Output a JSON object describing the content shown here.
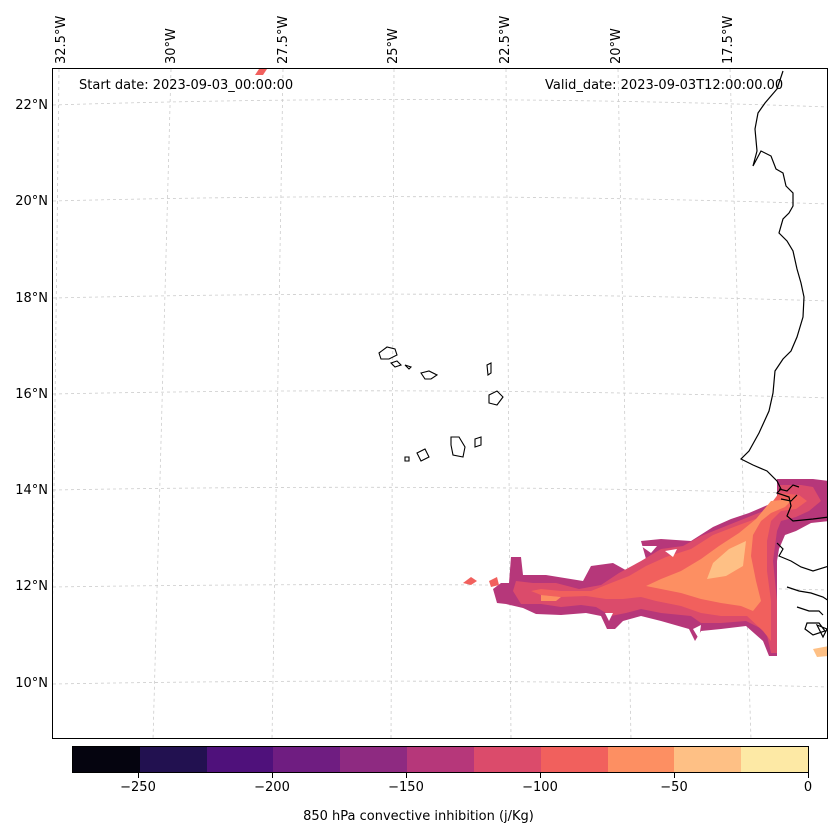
{
  "map": {
    "start_date": "Start date: 2023-09-03_00:00:00",
    "valid_date": "Valid_date: 2023-09-03T12:00:00.00",
    "lon_labels": [
      "32.5°W",
      "30°W",
      "27.5°W",
      "25°W",
      "22.5°W",
      "20°W",
      "17.5°W"
    ],
    "lat_labels": [
      "22°N",
      "20°N",
      "18°N",
      "16°N",
      "14°N",
      "12°N",
      "10°N"
    ],
    "variable": "850 hPa convective inhibition",
    "units": "j/Kg"
  },
  "colorbar": {
    "label": "850 hPa convective inhibition (j/Kg)",
    "tick_labels": [
      "−250",
      "−200",
      "−150",
      "−100",
      "−50",
      "0"
    ],
    "levels": [
      -275,
      -250,
      -225,
      -200,
      -175,
      -150,
      -125,
      -100,
      -75,
      -50,
      -25,
      0
    ],
    "colors": [
      "#05040f",
      "#221150",
      "#4f117b",
      "#6f1d81",
      "#8e2a81",
      "#b6377a",
      "#db4b6b",
      "#f1605d",
      "#fd8f62",
      "#fec085",
      "#fde9a5"
    ]
  }
}
